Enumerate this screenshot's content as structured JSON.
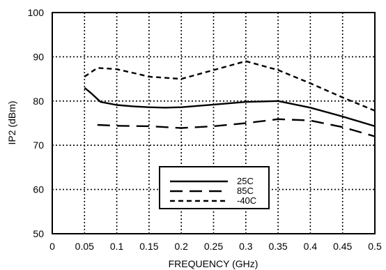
{
  "chart_data": {
    "type": "line",
    "xlabel": "FREQUENCY (GHz)",
    "ylabel": "IP2  (dBm)",
    "xlim": [
      0,
      0.5
    ],
    "ylim": [
      50,
      100
    ],
    "x_ticks": [
      0,
      0.05,
      0.1,
      0.15,
      0.2,
      0.25,
      0.3,
      0.35,
      0.4,
      0.45,
      0.5
    ],
    "x_tick_labels": [
      "0",
      "0.05",
      "0.1",
      "0.15",
      "0.2",
      "0.25",
      "0.3",
      "0.35",
      "0.4",
      "0.45",
      "0.5"
    ],
    "y_ticks": [
      50,
      60,
      70,
      80,
      90,
      100
    ],
    "y_tick_labels": [
      "50",
      "60",
      "70",
      "80",
      "90",
      "100"
    ],
    "grid": true,
    "legend_position": "bottom-center",
    "series": [
      {
        "name": "25C",
        "line_style": "solid",
        "x": [
          0.05,
          0.06,
          0.075,
          0.1,
          0.125,
          0.15,
          0.175,
          0.2,
          0.25,
          0.3,
          0.35,
          0.4,
          0.45,
          0.5
        ],
        "y": [
          83,
          81.8,
          79.8,
          79.1,
          78.8,
          78.6,
          78.5,
          78.6,
          79.2,
          79.8,
          80.0,
          78.5,
          76.5,
          74.3
        ]
      },
      {
        "name": "85C",
        "line_style": "long-dash",
        "x": [
          0.07,
          0.1,
          0.15,
          0.2,
          0.25,
          0.3,
          0.35,
          0.4,
          0.45,
          0.5
        ],
        "y": [
          74.6,
          74.4,
          74.3,
          73.9,
          74.3,
          75.0,
          75.9,
          75.6,
          74.1,
          72.0
        ]
      },
      {
        "name": "-40C",
        "line_style": "short-dash",
        "x": [
          0.05,
          0.07,
          0.1,
          0.13,
          0.15,
          0.2,
          0.25,
          0.3,
          0.35,
          0.4,
          0.45,
          0.5
        ],
        "y": [
          85.5,
          87.5,
          87.2,
          86.2,
          85.5,
          85.0,
          87.0,
          89.0,
          87.0,
          84.0,
          80.8,
          77.8
        ]
      }
    ]
  }
}
